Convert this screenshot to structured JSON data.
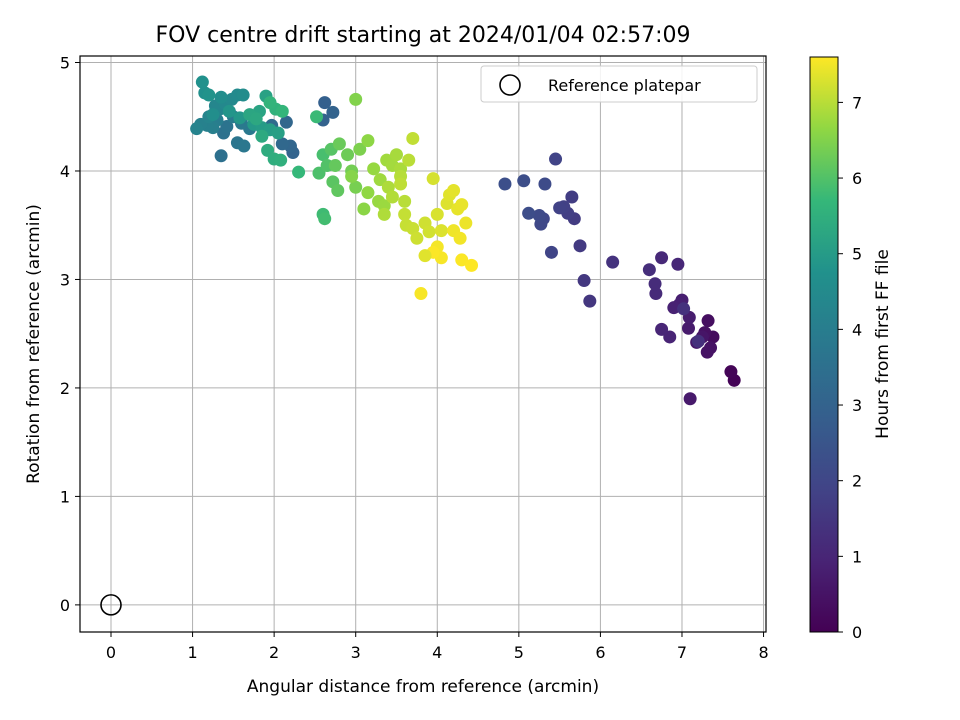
{
  "chart_data": {
    "type": "scatter",
    "title": "FOV centre drift starting at 2024/01/04 02:57:09",
    "xlabel": "Angular distance from reference (arcmin)",
    "ylabel": "Rotation from reference (arcmin)",
    "colorbar_label": "Hours from first FF file",
    "xlim": [
      -0.38,
      8.03
    ],
    "ylim": [
      -0.25,
      5.06
    ],
    "clim": [
      0,
      7.6
    ],
    "xticks": [
      "0",
      "1",
      "2",
      "3",
      "4",
      "5",
      "6",
      "7",
      "8"
    ],
    "yticks": [
      "0",
      "1",
      "2",
      "3",
      "4",
      "5"
    ],
    "cticks": [
      "0",
      "1",
      "2",
      "3",
      "4",
      "5",
      "6",
      "7"
    ],
    "grid": true,
    "colormap": "viridis",
    "legend": {
      "position": "top-right",
      "entries": [
        "Reference platepar"
      ]
    },
    "reference": {
      "x": 0,
      "y": 0,
      "label": "Reference platepar"
    },
    "points": [
      [
        7.64,
        2.07,
        0.05
      ],
      [
        7.6,
        2.15,
        0.1
      ],
      [
        7.38,
        2.47,
        0.3
      ],
      [
        7.32,
        2.62,
        0.35
      ],
      [
        7.28,
        2.51,
        0.4
      ],
      [
        7.35,
        2.37,
        0.45
      ],
      [
        7.31,
        2.33,
        0.5
      ],
      [
        7.25,
        2.47,
        0.55
      ],
      [
        7.18,
        2.42,
        0.6
      ],
      [
        7.1,
        1.9,
        0.65
      ],
      [
        7.08,
        2.55,
        0.7
      ],
      [
        7.09,
        2.65,
        0.75
      ],
      [
        7.0,
        2.81,
        0.8
      ],
      [
        6.97,
        2.77,
        0.85
      ],
      [
        6.9,
        2.74,
        0.9
      ],
      [
        6.85,
        2.47,
        0.95
      ],
      [
        6.75,
        2.54,
        1.0
      ],
      [
        6.95,
        3.14,
        1.05
      ],
      [
        6.75,
        3.2,
        1.1
      ],
      [
        6.68,
        2.87,
        1.15
      ],
      [
        6.67,
        2.96,
        1.2
      ],
      [
        6.6,
        3.09,
        1.25
      ],
      [
        7.2,
        2.43,
        1.3
      ],
      [
        7.02,
        2.73,
        1.35
      ],
      [
        6.15,
        3.16,
        1.4
      ],
      [
        5.87,
        2.8,
        1.5
      ],
      [
        5.8,
        2.99,
        1.55
      ],
      [
        5.75,
        3.31,
        1.6
      ],
      [
        5.68,
        3.56,
        1.65
      ],
      [
        5.65,
        3.76,
        1.7
      ],
      [
        5.6,
        3.61,
        1.75
      ],
      [
        5.55,
        3.67,
        1.8
      ],
      [
        5.5,
        3.66,
        1.85
      ],
      [
        5.45,
        4.11,
        1.9
      ],
      [
        5.4,
        3.25,
        1.95
      ],
      [
        5.3,
        3.56,
        2.0
      ],
      [
        5.27,
        3.51,
        2.05
      ],
      [
        5.25,
        3.59,
        2.1
      ],
      [
        5.32,
        3.88,
        2.15
      ],
      [
        5.12,
        3.61,
        2.2
      ],
      [
        5.06,
        3.91,
        2.25
      ],
      [
        4.83,
        3.88,
        2.3
      ],
      [
        2.62,
        4.63,
        2.9
      ],
      [
        2.6,
        4.47,
        2.95
      ],
      [
        2.72,
        4.54,
        3.0
      ],
      [
        2.23,
        4.17,
        3.05
      ],
      [
        2.2,
        4.23,
        3.1
      ],
      [
        2.15,
        4.45,
        3.15
      ],
      [
        2.1,
        4.25,
        3.2
      ],
      [
        1.97,
        4.42,
        3.3
      ],
      [
        1.35,
        4.14,
        3.5
      ],
      [
        1.38,
        4.35,
        3.55
      ],
      [
        1.42,
        4.41,
        3.6
      ],
      [
        1.55,
        4.26,
        3.7
      ],
      [
        1.63,
        4.23,
        3.75
      ],
      [
        1.7,
        4.39,
        3.8
      ],
      [
        1.6,
        4.44,
        3.85
      ],
      [
        1.5,
        4.5,
        3.9
      ],
      [
        1.45,
        4.55,
        3.95
      ],
      [
        1.3,
        4.47,
        4.0
      ],
      [
        1.25,
        4.4,
        4.05
      ],
      [
        1.18,
        4.42,
        4.1
      ],
      [
        1.1,
        4.43,
        4.15
      ],
      [
        1.05,
        4.39,
        4.2
      ],
      [
        1.2,
        4.5,
        4.25
      ],
      [
        1.33,
        4.57,
        4.3
      ],
      [
        1.28,
        4.6,
        4.35
      ],
      [
        1.4,
        4.62,
        4.4
      ],
      [
        1.48,
        4.66,
        4.45
      ],
      [
        1.55,
        4.7,
        4.5
      ],
      [
        1.62,
        4.7,
        4.55
      ],
      [
        1.35,
        4.68,
        4.6
      ],
      [
        1.25,
        4.52,
        4.65
      ],
      [
        1.15,
        4.72,
        4.7
      ],
      [
        1.12,
        4.82,
        4.75
      ],
      [
        1.2,
        4.7,
        4.8
      ],
      [
        1.45,
        4.55,
        4.85
      ],
      [
        1.58,
        4.49,
        4.9
      ],
      [
        1.75,
        4.43,
        4.95
      ],
      [
        1.85,
        4.4,
        5.0
      ],
      [
        1.95,
        4.38,
        5.05
      ],
      [
        2.05,
        4.35,
        5.1
      ],
      [
        1.9,
        4.69,
        5.15
      ],
      [
        1.82,
        4.55,
        5.2
      ],
      [
        1.7,
        4.52,
        5.25
      ],
      [
        1.78,
        4.48,
        5.3
      ],
      [
        1.85,
        4.32,
        5.35
      ],
      [
        1.92,
        4.19,
        5.4
      ],
      [
        2.0,
        4.11,
        5.45
      ],
      [
        2.08,
        4.1,
        5.5
      ],
      [
        2.02,
        4.57,
        5.55
      ],
      [
        1.95,
        4.63,
        5.6
      ],
      [
        2.1,
        4.55,
        5.65
      ],
      [
        2.3,
        3.99,
        5.7
      ],
      [
        2.52,
        4.5,
        5.75
      ],
      [
        2.6,
        3.6,
        5.8
      ],
      [
        2.62,
        3.56,
        5.85
      ],
      [
        2.6,
        4.15,
        5.9
      ],
      [
        2.55,
        3.98,
        5.95
      ],
      [
        2.65,
        4.05,
        6.0
      ],
      [
        2.7,
        4.2,
        6.05
      ],
      [
        2.72,
        3.9,
        6.1
      ],
      [
        2.78,
        3.82,
        6.15
      ],
      [
        2.75,
        4.05,
        6.2
      ],
      [
        2.8,
        4.25,
        6.25
      ],
      [
        2.9,
        4.15,
        6.3
      ],
      [
        2.95,
        4.0,
        6.35
      ],
      [
        3.0,
        3.85,
        6.4
      ],
      [
        3.05,
        4.2,
        6.45
      ],
      [
        3.0,
        4.66,
        6.5
      ],
      [
        2.95,
        3.95,
        6.55
      ],
      [
        3.1,
        3.65,
        6.6
      ],
      [
        3.15,
        4.28,
        6.62
      ],
      [
        3.15,
        3.8,
        6.65
      ],
      [
        3.22,
        4.02,
        6.7
      ],
      [
        3.28,
        3.72,
        6.72
      ],
      [
        3.35,
        3.68,
        6.75
      ],
      [
        3.3,
        3.92,
        6.78
      ],
      [
        3.38,
        4.1,
        6.8
      ],
      [
        3.45,
        4.05,
        6.82
      ],
      [
        3.5,
        4.15,
        6.85
      ],
      [
        3.55,
        4.02,
        6.88
      ],
      [
        3.4,
        3.85,
        6.9
      ],
      [
        3.35,
        3.6,
        6.92
      ],
      [
        3.45,
        3.76,
        6.95
      ],
      [
        3.55,
        3.95,
        6.98
      ],
      [
        3.6,
        3.72,
        7.0
      ],
      [
        3.65,
        4.1,
        7.02
      ],
      [
        3.55,
        3.88,
        7.05
      ],
      [
        3.7,
        4.3,
        7.08
      ],
      [
        3.6,
        3.6,
        7.1
      ],
      [
        3.62,
        3.5,
        7.12
      ],
      [
        3.7,
        3.47,
        7.15
      ],
      [
        3.75,
        3.38,
        7.18
      ],
      [
        3.85,
        3.52,
        7.2
      ],
      [
        3.9,
        3.44,
        7.22
      ],
      [
        3.95,
        3.93,
        7.25
      ],
      [
        4.0,
        3.6,
        7.28
      ],
      [
        4.05,
        3.45,
        7.3
      ],
      [
        4.12,
        3.7,
        7.32
      ],
      [
        4.15,
        3.78,
        7.35
      ],
      [
        4.2,
        3.82,
        7.38
      ],
      [
        4.25,
        3.65,
        7.4
      ],
      [
        4.3,
        3.69,
        7.42
      ],
      [
        4.35,
        3.52,
        7.45
      ],
      [
        4.2,
        3.45,
        7.48
      ],
      [
        4.28,
        3.38,
        7.5
      ],
      [
        4.0,
        3.3,
        7.52
      ],
      [
        4.05,
        3.2,
        7.55
      ],
      [
        3.8,
        2.87,
        7.55
      ],
      [
        3.95,
        3.25,
        7.58
      ],
      [
        4.3,
        3.18,
        7.58
      ],
      [
        4.42,
        3.13,
        7.6
      ],
      [
        3.85,
        3.22,
        7.35
      ]
    ]
  }
}
